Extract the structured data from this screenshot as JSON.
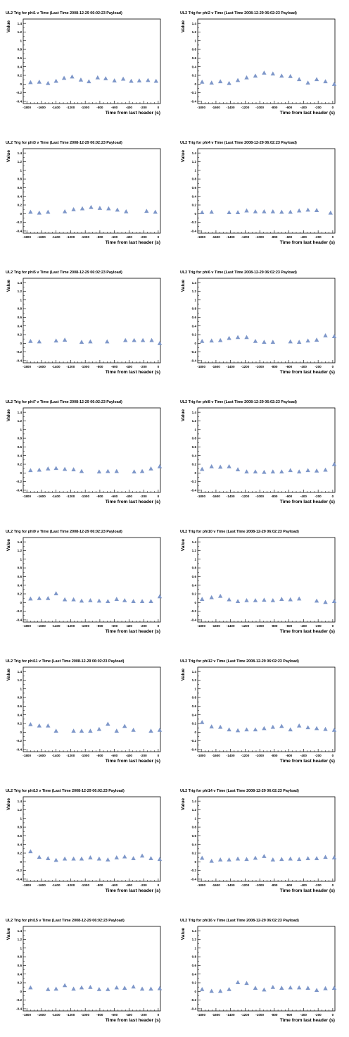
{
  "figure": {
    "xlabel": "Time from last header (s)",
    "ylabel": "Value",
    "marker_color": "#7e97c9",
    "xlim": [
      -1850,
      30
    ],
    "ylim": [
      -0.45,
      1.5
    ],
    "xticks": [
      -1800,
      -1600,
      -1400,
      -1200,
      -1000,
      -800,
      -600,
      -400,
      -200,
      0
    ],
    "yticks": [
      -0.4,
      -0.2,
      0,
      0.2,
      0.4,
      0.6,
      0.8,
      1,
      1.2,
      1.4
    ],
    "xtick_labels": [
      "-1800",
      "-1600",
      "-1400",
      "-1200",
      "-1000",
      "-800",
      "-600",
      "-400",
      "-200",
      "0"
    ],
    "ytick_labels": [
      "-0.4",
      "-0.2",
      "0",
      "0.2",
      "0.4",
      "0.6",
      "0.8",
      "1",
      "1.2",
      "1.4"
    ]
  },
  "chart_data": [
    {
      "type": "scatter",
      "title": "UL2 Trig for phi1 v Time (Last Time 2008-12-29 06:02:23 Payload)",
      "xlabel": "Time from last header (s)",
      "ylabel": "Value",
      "x": [
        -1750,
        -1630,
        -1510,
        -1400,
        -1290,
        -1180,
        -1060,
        -950,
        -830,
        -720,
        -600,
        -480,
        -370,
        -260,
        -140,
        -30
      ],
      "y": [
        0.04,
        0.05,
        0.02,
        0.07,
        0.14,
        0.17,
        0.1,
        0.06,
        0.15,
        0.13,
        0.08,
        0.12,
        0.07,
        0.08,
        0.09,
        0.07
      ]
    },
    {
      "type": "scatter",
      "title": "UL2 Trig for phi2 v Time (Last Time 2008-12-29 06:02:23 Payload)",
      "xlabel": "Time from last header (s)",
      "ylabel": "Value",
      "x": [
        -1790,
        -1660,
        -1540,
        -1420,
        -1300,
        -1180,
        -1060,
        -940,
        -820,
        -700,
        -580,
        -460,
        -340,
        -220,
        -100,
        20
      ],
      "y": [
        0.05,
        0.03,
        0.06,
        0.02,
        0.09,
        0.15,
        0.19,
        0.26,
        0.24,
        0.19,
        0.18,
        0.11,
        0.03,
        0.11,
        0.06,
        0.0
      ]
    },
    {
      "type": "scatter",
      "title": "UL2 Trig for phi3 v Time (Last Time 2008-12-29 06:02:23 Payload)",
      "xlabel": "Time from last header (s)",
      "ylabel": "Value",
      "x": [
        -1750,
        -1630,
        -1510,
        -1280,
        -1160,
        -1040,
        -920,
        -800,
        -680,
        -560,
        -440,
        -160,
        -40
      ],
      "y": [
        0.04,
        0.02,
        0.04,
        0.05,
        0.1,
        0.12,
        0.15,
        0.13,
        0.12,
        0.09,
        0.05,
        0.06,
        0.04
      ]
    },
    {
      "type": "scatter",
      "title": "UL2 Trig for phi4 v Time (Last Time 2008-12-29 06:02:23 Payload)",
      "xlabel": "Time from last header (s)",
      "ylabel": "Value",
      "x": [
        -1790,
        -1660,
        -1420,
        -1300,
        -1180,
        -1060,
        -940,
        -820,
        -700,
        -580,
        -460,
        -340,
        -220,
        -30
      ],
      "y": [
        0.03,
        0.04,
        0.03,
        0.03,
        0.07,
        0.05,
        0.05,
        0.05,
        0.04,
        0.04,
        0.07,
        0.09,
        0.08,
        0.02
      ]
    },
    {
      "type": "scatter",
      "title": "UL2 Trig for phi5 v Time (Last Time 2008-12-29 06:02:23 Payload)",
      "xlabel": "Time from last header (s)",
      "ylabel": "Value",
      "x": [
        -1750,
        -1630,
        -1400,
        -1280,
        -1050,
        -930,
        -700,
        -450,
        -330,
        -210,
        -90,
        20
      ],
      "y": [
        0.05,
        0.04,
        0.06,
        0.08,
        0.03,
        0.04,
        0.04,
        0.07,
        0.07,
        0.07,
        0.07,
        0.0
      ]
    },
    {
      "type": "scatter",
      "title": "UL2 Trig for phi6 v Time (Last Time 2008-12-29 06:02:23 Payload)",
      "xlabel": "Time from last header (s)",
      "ylabel": "Value",
      "x": [
        -1790,
        -1660,
        -1540,
        -1420,
        -1300,
        -1180,
        -1060,
        -940,
        -820,
        -580,
        -460,
        -340,
        -220,
        -100,
        20
      ],
      "y": [
        0.05,
        0.06,
        0.07,
        0.12,
        0.14,
        0.14,
        0.05,
        0.03,
        0.03,
        0.04,
        0.03,
        0.06,
        0.08,
        0.18,
        0.16
      ]
    },
    {
      "type": "scatter",
      "title": "UL2 Trig for phi7 v Time (Last Time 2008-12-29 06:02:23 Payload)",
      "xlabel": "Time from last header (s)",
      "ylabel": "Value",
      "x": [
        -1750,
        -1630,
        -1510,
        -1400,
        -1280,
        -1160,
        -1050,
        -810,
        -690,
        -570,
        -330,
        -220,
        -100,
        20
      ],
      "y": [
        0.06,
        0.07,
        0.1,
        0.11,
        0.09,
        0.08,
        0.04,
        0.03,
        0.04,
        0.04,
        0.03,
        0.04,
        0.1,
        0.15
      ]
    },
    {
      "type": "scatter",
      "title": "UL2 Trig for phi8 v Time (Last Time 2008-12-29 06:02:23 Payload)",
      "xlabel": "Time from last header (s)",
      "ylabel": "Value",
      "x": [
        -1790,
        -1660,
        -1540,
        -1420,
        -1300,
        -1180,
        -1060,
        -940,
        -820,
        -700,
        -580,
        -460,
        -340,
        -220,
        -100,
        20
      ],
      "y": [
        0.09,
        0.15,
        0.14,
        0.15,
        0.08,
        0.03,
        0.03,
        0.02,
        0.03,
        0.03,
        0.06,
        0.03,
        0.06,
        0.05,
        0.07,
        0.2
      ]
    },
    {
      "type": "scatter",
      "title": "UL2 Trig for phi9 v Time (Last Time 2008-12-29 06:02:23 Payload)",
      "xlabel": "Time from last header (s)",
      "ylabel": "Value",
      "x": [
        -1750,
        -1630,
        -1510,
        -1400,
        -1280,
        -1160,
        -1050,
        -930,
        -810,
        -690,
        -570,
        -460,
        -340,
        -220,
        -100,
        20
      ],
      "y": [
        0.09,
        0.1,
        0.1,
        0.21,
        0.07,
        0.07,
        0.04,
        0.05,
        0.04,
        0.03,
        0.08,
        0.05,
        0.03,
        0.03,
        0.03,
        0.14
      ]
    },
    {
      "type": "scatter",
      "title": "UL2 Trig for phi10 v Time (Last Time 2008-12-29 06:02:23 Payload)",
      "xlabel": "Time from last header (s)",
      "ylabel": "Value",
      "x": [
        -1790,
        -1660,
        -1540,
        -1420,
        -1300,
        -1180,
        -1060,
        -940,
        -820,
        -700,
        -580,
        -460,
        -220,
        -100,
        20
      ],
      "y": [
        0.08,
        0.12,
        0.15,
        0.07,
        0.03,
        0.05,
        0.05,
        0.06,
        0.05,
        0.08,
        0.07,
        0.09,
        0.04,
        0.01,
        0.03
      ]
    },
    {
      "type": "scatter",
      "title": "UL2 Trig for phi11 v Time (Last Time 2008-12-29 06:02:23 Payload)",
      "xlabel": "Time from last header (s)",
      "ylabel": "Value",
      "x": [
        -1750,
        -1630,
        -1510,
        -1400,
        -1160,
        -1050,
        -930,
        -810,
        -690,
        -570,
        -460,
        -340,
        -100,
        20
      ],
      "y": [
        0.18,
        0.15,
        0.15,
        0.03,
        0.03,
        0.03,
        0.03,
        0.07,
        0.19,
        0.03,
        0.14,
        0.05,
        0.03,
        0.05
      ]
    },
    {
      "type": "scatter",
      "title": "UL2 Trig for phi12 v Time (Last Time 2008-12-29 06:02:23 Payload)",
      "xlabel": "Time from last header (s)",
      "ylabel": "Value",
      "x": [
        -1790,
        -1660,
        -1540,
        -1420,
        -1300,
        -1180,
        -1060,
        -940,
        -820,
        -700,
        -580,
        -460,
        -340,
        -220,
        -100,
        20
      ],
      "y": [
        0.23,
        0.13,
        0.12,
        0.06,
        0.04,
        0.06,
        0.06,
        0.09,
        0.12,
        0.14,
        0.06,
        0.15,
        0.11,
        0.09,
        0.07,
        0.05
      ]
    },
    {
      "type": "scatter",
      "title": "UL2 Trig for phi13 v Time (Last Time 2008-12-29 06:02:23 Payload)",
      "xlabel": "Time from last header (s)",
      "ylabel": "Value",
      "x": [
        -1750,
        -1630,
        -1510,
        -1400,
        -1280,
        -1160,
        -1050,
        -930,
        -810,
        -690,
        -570,
        -460,
        -340,
        -220,
        -100,
        20
      ],
      "y": [
        0.24,
        0.11,
        0.08,
        0.04,
        0.07,
        0.07,
        0.07,
        0.1,
        0.07,
        0.05,
        0.1,
        0.12,
        0.08,
        0.14,
        0.08,
        0.06
      ]
    },
    {
      "type": "scatter",
      "title": "UL2 Trig for phi14 v Time (Last Time 2008-12-29 06:02:23 Payload)",
      "xlabel": "Time from last header (s)",
      "ylabel": "Value",
      "x": [
        -1790,
        -1660,
        -1540,
        -1420,
        -1300,
        -1180,
        -1060,
        -940,
        -820,
        -700,
        -580,
        -460,
        -340,
        -220,
        -100,
        20
      ],
      "y": [
        0.09,
        0.02,
        0.05,
        0.05,
        0.07,
        0.06,
        0.09,
        0.13,
        0.05,
        0.06,
        0.07,
        0.06,
        0.08,
        0.08,
        0.11,
        0.1
      ]
    },
    {
      "type": "scatter",
      "title": "UL2 Trig for phi15 v Time (Last Time 2008-12-29 06:02:23 Payload)",
      "xlabel": "Time from last header (s)",
      "ylabel": "Value",
      "x": [
        -1750,
        -1510,
        -1400,
        -1280,
        -1160,
        -1050,
        -930,
        -810,
        -690,
        -570,
        -460,
        -340,
        -220,
        -100,
        20
      ],
      "y": [
        0.09,
        0.05,
        0.06,
        0.14,
        0.06,
        0.09,
        0.1,
        0.05,
        0.05,
        0.09,
        0.08,
        0.11,
        0.06,
        0.06,
        0.07
      ]
    },
    {
      "type": "scatter",
      "title": "UL2 Trig for phi16 v Time (Last Time 2008-12-29 06:02:23 Payload)",
      "xlabel": "Time from last header (s)",
      "ylabel": "Value",
      "x": [
        -1790,
        -1660,
        -1540,
        -1420,
        -1300,
        -1180,
        -1060,
        -940,
        -820,
        -700,
        -580,
        -460,
        -340,
        -220,
        -100,
        20
      ],
      "y": [
        0.05,
        0.01,
        0.01,
        0.05,
        0.21,
        0.19,
        0.08,
        0.04,
        0.1,
        0.08,
        0.09,
        0.09,
        0.08,
        0.03,
        0.07,
        0.08
      ]
    }
  ]
}
